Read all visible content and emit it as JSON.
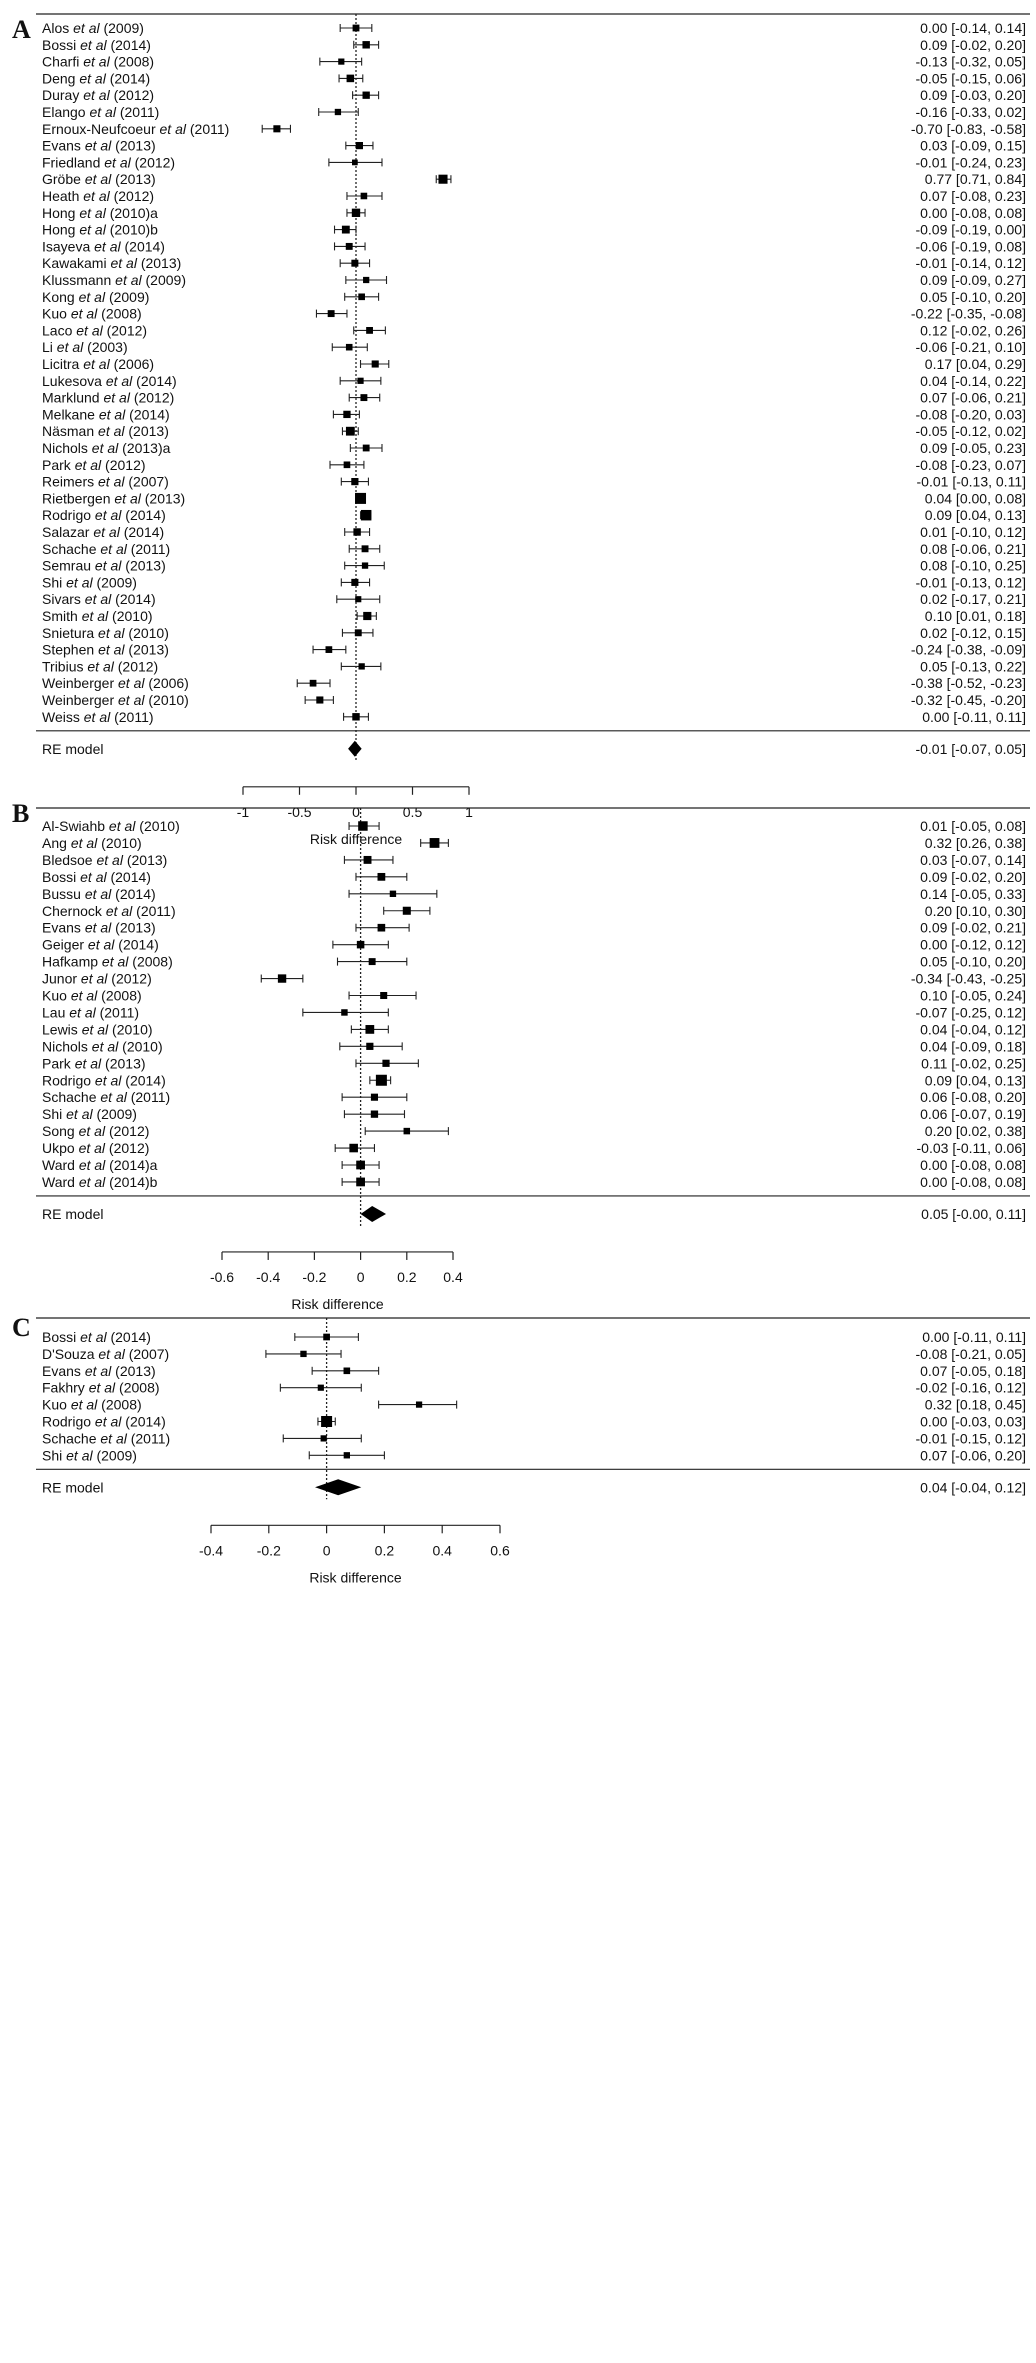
{
  "etal": "et al",
  "summary_label": "RE model",
  "chart_data": [
    {
      "type": "forest",
      "panel": "A",
      "xlabel": "Risk difference",
      "xticks": [
        -1,
        -0.5,
        0,
        0.5,
        1
      ],
      "xtick_labels": [
        "-1",
        "-0.5",
        "0",
        "0.5",
        "1"
      ],
      "xlim": [
        -1,
        1
      ],
      "studies": [
        {
          "author": "Alos",
          "year": "(2009)",
          "est": 0.0,
          "lo": -0.14,
          "hi": 0.14
        },
        {
          "author": "Bossi",
          "year": "(2014)",
          "est": 0.09,
          "lo": -0.02,
          "hi": 0.2
        },
        {
          "author": "Charfi",
          "year": "(2008)",
          "est": -0.13,
          "lo": -0.32,
          "hi": 0.05
        },
        {
          "author": "Deng",
          "year": "(2014)",
          "est": -0.05,
          "lo": -0.15,
          "hi": 0.06
        },
        {
          "author": "Duray",
          "year": "(2012)",
          "est": 0.09,
          "lo": -0.03,
          "hi": 0.2
        },
        {
          "author": "Elango",
          "year": "(2011)",
          "est": -0.16,
          "lo": -0.33,
          "hi": 0.02
        },
        {
          "author": "Ernoux-Neufcoeur",
          "year": "(2011)",
          "est": -0.7,
          "lo": -0.83,
          "hi": -0.58
        },
        {
          "author": "Evans",
          "year": "(2013)",
          "est": 0.03,
          "lo": -0.09,
          "hi": 0.15
        },
        {
          "author": "Friedland",
          "year": "(2012)",
          "est": -0.01,
          "lo": -0.24,
          "hi": 0.23
        },
        {
          "author": "Gröbe",
          "year": "(2013)",
          "est": 0.77,
          "lo": 0.71,
          "hi": 0.84
        },
        {
          "author": "Heath",
          "year": "(2012)",
          "est": 0.07,
          "lo": -0.08,
          "hi": 0.23
        },
        {
          "author": "Hong",
          "year": "(2010)a",
          "est": 0.0,
          "lo": -0.08,
          "hi": 0.08
        },
        {
          "author": "Hong",
          "year": "(2010)b",
          "est": -0.09,
          "lo": -0.19,
          "hi": 0.0
        },
        {
          "author": "Isayeva",
          "year": "(2014)",
          "est": -0.06,
          "lo": -0.19,
          "hi": 0.08
        },
        {
          "author": "Kawakami",
          "year": "(2013)",
          "est": -0.01,
          "lo": -0.14,
          "hi": 0.12
        },
        {
          "author": "Klussmann",
          "year": "(2009)",
          "est": 0.09,
          "lo": -0.09,
          "hi": 0.27
        },
        {
          "author": "Kong",
          "year": "(2009)",
          "est": 0.05,
          "lo": -0.1,
          "hi": 0.2
        },
        {
          "author": "Kuo",
          "year": "(2008)",
          "est": -0.22,
          "lo": -0.35,
          "hi": -0.08
        },
        {
          "author": "Laco",
          "year": "(2012)",
          "est": 0.12,
          "lo": -0.02,
          "hi": 0.26
        },
        {
          "author": "Li",
          "year": "(2003)",
          "est": -0.06,
          "lo": -0.21,
          "hi": 0.1
        },
        {
          "author": "Licitra",
          "year": "(2006)",
          "est": 0.17,
          "lo": 0.04,
          "hi": 0.29
        },
        {
          "author": "Lukesova",
          "year": "(2014)",
          "est": 0.04,
          "lo": -0.14,
          "hi": 0.22
        },
        {
          "author": "Marklund",
          "year": "(2012)",
          "est": 0.07,
          "lo": -0.06,
          "hi": 0.21
        },
        {
          "author": "Melkane",
          "year": "(2014)",
          "est": -0.08,
          "lo": -0.2,
          "hi": 0.03
        },
        {
          "author": "Näsman",
          "year": "(2013)",
          "est": -0.05,
          "lo": -0.12,
          "hi": 0.02
        },
        {
          "author": "Nichols",
          "year": "(2013)a",
          "est": 0.09,
          "lo": -0.05,
          "hi": 0.23
        },
        {
          "author": "Park",
          "year": "(2012)",
          "est": -0.08,
          "lo": -0.23,
          "hi": 0.07
        },
        {
          "author": "Reimers",
          "year": "(2007)",
          "est": -0.01,
          "lo": -0.13,
          "hi": 0.11
        },
        {
          "author": "Rietbergen",
          "year": "(2013)",
          "est": 0.04,
          "lo": 0.0,
          "hi": 0.08
        },
        {
          "author": "Rodrigo",
          "year": "(2014)",
          "est": 0.09,
          "lo": 0.04,
          "hi": 0.13
        },
        {
          "author": "Salazar",
          "year": "(2014)",
          "est": 0.01,
          "lo": -0.1,
          "hi": 0.12
        },
        {
          "author": "Schache",
          "year": "(2011)",
          "est": 0.08,
          "lo": -0.06,
          "hi": 0.21
        },
        {
          "author": "Semrau",
          "year": "(2013)",
          "est": 0.08,
          "lo": -0.1,
          "hi": 0.25
        },
        {
          "author": "Shi",
          "year": "(2009)",
          "est": -0.01,
          "lo": -0.13,
          "hi": 0.12
        },
        {
          "author": "Sivars",
          "year": "(2014)",
          "est": 0.02,
          "lo": -0.17,
          "hi": 0.21
        },
        {
          "author": "Smith",
          "year": "(2010)",
          "est": 0.1,
          "lo": 0.01,
          "hi": 0.18
        },
        {
          "author": "Snietura",
          "year": "(2010)",
          "est": 0.02,
          "lo": -0.12,
          "hi": 0.15
        },
        {
          "author": "Stephen",
          "year": "(2013)",
          "est": -0.24,
          "lo": -0.38,
          "hi": -0.09
        },
        {
          "author": "Tribius",
          "year": "(2012)",
          "est": 0.05,
          "lo": -0.13,
          "hi": 0.22
        },
        {
          "author": "Weinberger",
          "year": "(2006)",
          "est": -0.38,
          "lo": -0.52,
          "hi": -0.23
        },
        {
          "author": "Weinberger",
          "year": "(2010)",
          "est": -0.32,
          "lo": -0.45,
          "hi": -0.2
        },
        {
          "author": "Weiss",
          "year": "(2011)",
          "est": 0.0,
          "lo": -0.11,
          "hi": 0.11
        }
      ],
      "summary": {
        "est": -0.01,
        "lo": -0.07,
        "hi": 0.05
      }
    },
    {
      "type": "forest",
      "panel": "B",
      "xlabel": "Risk difference",
      "xticks": [
        -0.6,
        -0.4,
        -0.2,
        0,
        0.2,
        0.4
      ],
      "xtick_labels": [
        "-0.6",
        "-0.4",
        "-0.2",
        "0",
        "0.2",
        "0.4"
      ],
      "xlim": [
        -0.6,
        0.4
      ],
      "studies": [
        {
          "author": "Al-Swiahb",
          "year": "(2010)",
          "est": 0.01,
          "lo": -0.05,
          "hi": 0.08
        },
        {
          "author": "Ang",
          "year": "(2010)",
          "est": 0.32,
          "lo": 0.26,
          "hi": 0.38
        },
        {
          "author": "Bledsoe",
          "year": "(2013)",
          "est": 0.03,
          "lo": -0.07,
          "hi": 0.14
        },
        {
          "author": "Bossi",
          "year": "(2014)",
          "est": 0.09,
          "lo": -0.02,
          "hi": 0.2
        },
        {
          "author": "Bussu",
          "year": "(2014)",
          "est": 0.14,
          "lo": -0.05,
          "hi": 0.33
        },
        {
          "author": "Chernock",
          "year": "(2011)",
          "est": 0.2,
          "lo": 0.1,
          "hi": 0.3
        },
        {
          "author": "Evans",
          "year": "(2013)",
          "est": 0.09,
          "lo": -0.02,
          "hi": 0.21
        },
        {
          "author": "Geiger",
          "year": "(2014)",
          "est": 0.0,
          "lo": -0.12,
          "hi": 0.12
        },
        {
          "author": "Hafkamp",
          "year": "(2008)",
          "est": 0.05,
          "lo": -0.1,
          "hi": 0.2
        },
        {
          "author": "Junor",
          "year": "(2012)",
          "est": -0.34,
          "lo": -0.43,
          "hi": -0.25
        },
        {
          "author": "Kuo",
          "year": "(2008)",
          "est": 0.1,
          "lo": -0.05,
          "hi": 0.24
        },
        {
          "author": "Lau",
          "year": "(2011)",
          "est": -0.07,
          "lo": -0.25,
          "hi": 0.12
        },
        {
          "author": "Lewis",
          "year": "(2010)",
          "est": 0.04,
          "lo": -0.04,
          "hi": 0.12
        },
        {
          "author": "Nichols",
          "year": "(2010)",
          "est": 0.04,
          "lo": -0.09,
          "hi": 0.18
        },
        {
          "author": "Park",
          "year": "(2013)",
          "est": 0.11,
          "lo": -0.02,
          "hi": 0.25
        },
        {
          "author": "Rodrigo",
          "year": "(2014)",
          "est": 0.09,
          "lo": 0.04,
          "hi": 0.13
        },
        {
          "author": "Schache",
          "year": "(2011)",
          "est": 0.06,
          "lo": -0.08,
          "hi": 0.2
        },
        {
          "author": "Shi",
          "year": "(2009)",
          "est": 0.06,
          "lo": -0.07,
          "hi": 0.19
        },
        {
          "author": "Song",
          "year": "(2012)",
          "est": 0.2,
          "lo": 0.02,
          "hi": 0.38
        },
        {
          "author": "Ukpo",
          "year": "(2012)",
          "est": -0.03,
          "lo": -0.11,
          "hi": 0.06
        },
        {
          "author": "Ward",
          "year": "(2014)a",
          "est": 0.0,
          "lo": -0.08,
          "hi": 0.08
        },
        {
          "author": "Ward",
          "year": "(2014)b",
          "est": 0.0,
          "lo": -0.08,
          "hi": 0.08
        }
      ],
      "summary": {
        "est": 0.05,
        "lo": -0.0,
        "hi": 0.11
      }
    },
    {
      "type": "forest",
      "panel": "C",
      "xlabel": "Risk difference",
      "xticks": [
        -0.4,
        -0.2,
        0,
        0.2,
        0.4,
        0.6
      ],
      "xtick_labels": [
        "-0.4",
        "-0.2",
        "0",
        "0.2",
        "0.4",
        "0.6"
      ],
      "xlim": [
        -0.4,
        0.6
      ],
      "studies": [
        {
          "author": "Bossi",
          "year": "(2014)",
          "est": 0.0,
          "lo": -0.11,
          "hi": 0.11
        },
        {
          "author": "D'Souza",
          "year": "(2007)",
          "est": -0.08,
          "lo": -0.21,
          "hi": 0.05
        },
        {
          "author": "Evans",
          "year": "(2013)",
          "est": 0.07,
          "lo": -0.05,
          "hi": 0.18
        },
        {
          "author": "Fakhry",
          "year": "(2008)",
          "est": -0.02,
          "lo": -0.16,
          "hi": 0.12
        },
        {
          "author": "Kuo",
          "year": "(2008)",
          "est": 0.32,
          "lo": 0.18,
          "hi": 0.45
        },
        {
          "author": "Rodrigo",
          "year": "(2014)",
          "est": 0.0,
          "lo": -0.03,
          "hi": 0.03
        },
        {
          "author": "Schache",
          "year": "(2011)",
          "est": -0.01,
          "lo": -0.15,
          "hi": 0.12
        },
        {
          "author": "Shi",
          "year": "(2009)",
          "est": 0.07,
          "lo": -0.06,
          "hi": 0.2
        }
      ],
      "summary": {
        "est": 0.04,
        "lo": -0.04,
        "hi": 0.12
      }
    }
  ]
}
